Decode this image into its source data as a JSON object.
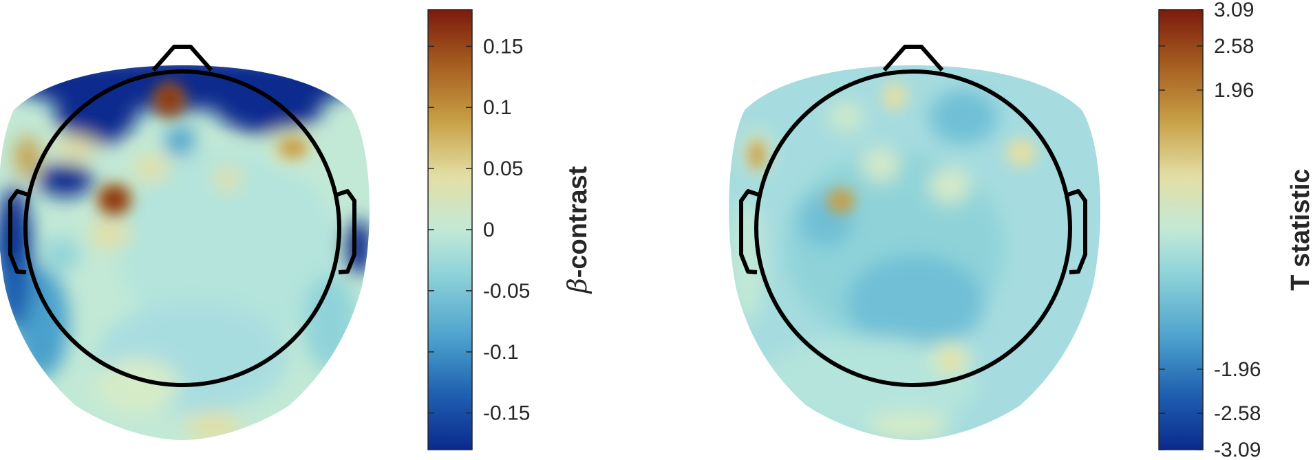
{
  "panels": [
    {
      "id": "beta",
      "colorbar": {
        "label_symbol": "β",
        "label_rest": "-contrast",
        "min": -0.18,
        "max": 0.18,
        "ticks": [
          {
            "value": 0.15,
            "label": "0.15"
          },
          {
            "value": 0.1,
            "label": "0.1"
          },
          {
            "value": 0.05,
            "label": "0.05"
          },
          {
            "value": 0,
            "label": "0"
          },
          {
            "value": -0.05,
            "label": "-0.05"
          },
          {
            "value": -0.1,
            "label": "-0.1"
          },
          {
            "value": -0.15,
            "label": "-0.15"
          }
        ]
      }
    },
    {
      "id": "tstat",
      "colorbar": {
        "label": "T statistic",
        "min": -3.09,
        "max": 3.09,
        "ticks": [
          {
            "value": 3.09,
            "label": "3.09"
          },
          {
            "value": 2.58,
            "label": "2.58"
          },
          {
            "value": 1.96,
            "label": "1.96"
          },
          {
            "value": -1.96,
            "label": "-1.96"
          },
          {
            "value": -2.58,
            "label": "-2.58"
          },
          {
            "value": -3.09,
            "label": "-3.09"
          }
        ]
      }
    }
  ],
  "colormap": [
    "#0a2a8e",
    "#1f5fb0",
    "#4aa0cc",
    "#8fd3d9",
    "#c2e9d6",
    "#e3dfa5",
    "#c79e44",
    "#a45b1f",
    "#7c1a0e"
  ]
}
